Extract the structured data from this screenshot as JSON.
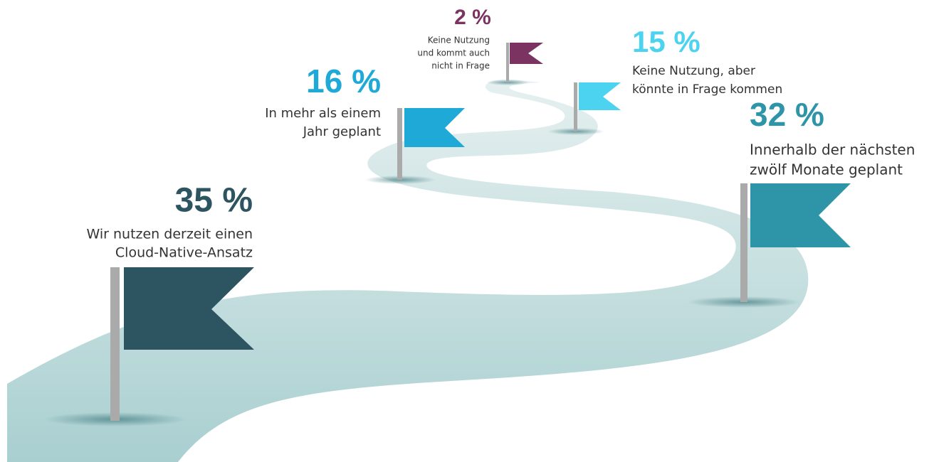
{
  "items": [
    {
      "percent": "35 %",
      "lines": [
        "Wir nutzen derzeit einen",
        "Cloud-Native-Ansatz"
      ]
    },
    {
      "percent": "16 %",
      "lines": [
        "In mehr als einem",
        "Jahr geplant"
      ]
    },
    {
      "percent": "2 %",
      "lines": [
        "Keine Nutzung",
        "und kommt auch",
        "nicht in Frage"
      ]
    },
    {
      "percent": "15 %",
      "lines": [
        "Keine Nutzung, aber",
        "könnte in Frage kommen"
      ]
    },
    {
      "percent": "32 %",
      "lines": [
        "Innerhalb der nächsten",
        "zwölf Monate geplant"
      ]
    }
  ]
}
